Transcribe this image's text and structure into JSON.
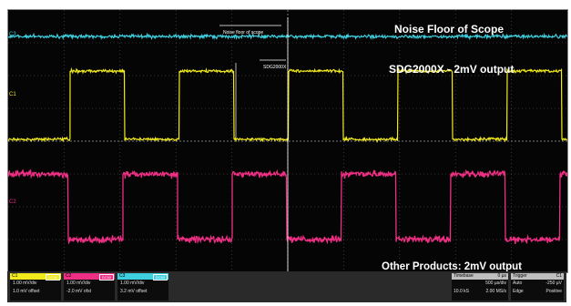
{
  "colors": {
    "ch1": "#f2ea1c",
    "ch2": "#ee2f84",
    "ch3": "#3fd0e0",
    "background": "#050505",
    "grid": "#5a5a5a"
  },
  "labels": {
    "noise_floor": "Noise Floor of Scope",
    "sdg_output": "SDG2000X - 2mV output",
    "other_products": "Other Products: 2mV output",
    "noise_marker": "Noise floor of scope",
    "sdg_marker": "SDG2000X",
    "ch_marker_3": "C3",
    "ch_marker_1": "C1",
    "ch_marker_2": "C2"
  },
  "channels": [
    {
      "name": "C1",
      "tag": "DC50",
      "vdiv": "1.00 mV/div",
      "offset": "1.0 mV offset"
    },
    {
      "name": "C2",
      "tag": "DC50",
      "vdiv": "1.00 mV/div",
      "offset": "-2.0 mV ofst"
    },
    {
      "name": "C3",
      "tag": "DC50",
      "vdiv": "1.00 mV/div",
      "offset": "3.2 mV offset"
    }
  ],
  "timebase": {
    "label": "Timebase",
    "value": "0 µs",
    "row1_left": "500 µs/div",
    "row2_left": "10.0 kS",
    "row2_right": "2.00 MS/s"
  },
  "trigger": {
    "label": "Trigger",
    "tag": "C1",
    "row1_left": "Auto",
    "row1_right": "-250 µV",
    "row2_left": "Edge",
    "row2_right": "Positive"
  }
}
